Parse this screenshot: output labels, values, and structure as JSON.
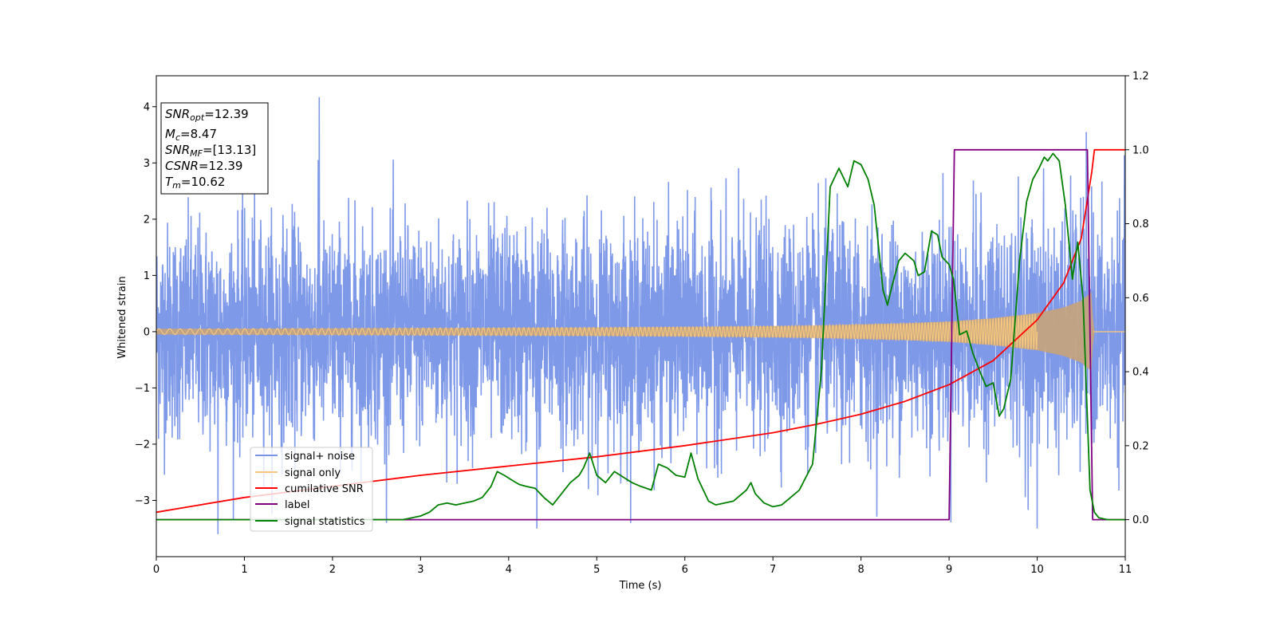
{
  "chart_data": {
    "type": "line",
    "xlabel": "Time (s)",
    "ylabel": "Whitened strain",
    "xlim": [
      0,
      11
    ],
    "ylim": [
      -4.0,
      4.55
    ],
    "y2lim": [
      -0.1,
      1.2
    ],
    "xticks": [
      "0",
      "1",
      "2",
      "3",
      "4",
      "5",
      "6",
      "7",
      "8",
      "9",
      "10",
      "11"
    ],
    "yticks": [
      "4",
      "3",
      "2",
      "1",
      "0",
      "−1",
      "−2",
      "−3"
    ],
    "yticks_values": [
      4,
      3,
      2,
      1,
      0,
      -1,
      -2,
      -3
    ],
    "y2ticks": [
      "1.2",
      "1.0",
      "0.8",
      "0.6",
      "0.4",
      "0.2",
      "0.0"
    ],
    "y2ticks_values": [
      1.2,
      1.0,
      0.8,
      0.6,
      0.4,
      0.2,
      0.0
    ],
    "legend_position": "lower-left",
    "info_box": {
      "snr_opt": {
        "base": "SNR",
        "sub": "opt",
        "value": "=12.39"
      },
      "mc": {
        "base": "M",
        "sub": "c",
        "value": "=8.47"
      },
      "snr_mf": {
        "base": "SNR",
        "sub": "MF",
        "value": "=[13.13]"
      },
      "csnr": {
        "base": "CSNR",
        "sub": "",
        "value": "=12.39"
      },
      "tm": {
        "base": "T",
        "sub": "m",
        "value": "=10.62"
      }
    },
    "series": [
      {
        "name": "signal+ noise",
        "color": "#7894e8",
        "axis": "left",
        "description_range": [
          -3.6,
          4.17
        ],
        "notable_peaks": [
          {
            "x": 1.85,
            "y": 4.17
          },
          {
            "x": 0.7,
            "y": -3.6
          },
          {
            "x": 4.32,
            "y": -3.5
          },
          {
            "x": 10.0,
            "y": -3.5
          }
        ]
      },
      {
        "name": "signal only",
        "color": "#f5c77e",
        "axis": "left",
        "envelope": {
          "x": [
            0,
            1,
            2,
            3,
            4,
            5,
            6,
            7,
            7.5,
            8,
            8.5,
            9,
            9.5,
            10,
            10.3,
            10.5,
            10.6,
            10.62,
            10.64,
            11
          ],
          "y": [
            0.05,
            0.055,
            0.06,
            0.065,
            0.07,
            0.075,
            0.085,
            0.1,
            0.11,
            0.13,
            0.15,
            0.18,
            0.24,
            0.33,
            0.43,
            0.55,
            0.68,
            0.72,
            0.0,
            0.0
          ]
        },
        "fill_color": "#c8a37a"
      },
      {
        "name": "cumilative SNR",
        "color": "#ff0000",
        "axis": "right",
        "x": [
          0,
          1,
          2,
          3,
          4,
          5,
          6,
          7,
          7.5,
          8,
          8.5,
          9,
          9.5,
          10,
          10.3,
          10.5,
          10.62,
          10.65,
          11
        ],
        "y": [
          0.02,
          0.06,
          0.09,
          0.12,
          0.145,
          0.17,
          0.2,
          0.235,
          0.258,
          0.285,
          0.32,
          0.365,
          0.43,
          0.54,
          0.64,
          0.76,
          0.94,
          1.0,
          1.0
        ]
      },
      {
        "name": "label",
        "color": "#800080",
        "axis": "right",
        "x": [
          0,
          9.0,
          9.06,
          10.57,
          10.63,
          11
        ],
        "y": [
          0.0,
          0.0,
          1.0,
          1.0,
          0.0,
          0.0
        ]
      },
      {
        "name": "signal statistics",
        "color": "#008000",
        "axis": "right",
        "x": [
          0,
          2.8,
          3.0,
          3.1,
          3.2,
          3.3,
          3.4,
          3.5,
          3.6,
          3.7,
          3.8,
          3.87,
          3.95,
          4.05,
          4.12,
          4.2,
          4.3,
          4.4,
          4.5,
          4.6,
          4.7,
          4.8,
          4.85,
          4.92,
          5.0,
          5.1,
          5.2,
          5.3,
          5.4,
          5.5,
          5.62,
          5.7,
          5.8,
          5.9,
          6.0,
          6.07,
          6.15,
          6.27,
          6.35,
          6.55,
          6.7,
          6.75,
          6.8,
          6.9,
          7.0,
          7.1,
          7.2,
          7.3,
          7.45,
          7.55,
          7.65,
          7.75,
          7.85,
          7.92,
          8.0,
          8.08,
          8.15,
          8.25,
          8.3,
          8.35,
          8.43,
          8.5,
          8.6,
          8.65,
          8.72,
          8.8,
          8.87,
          8.92,
          9.0,
          9.05,
          9.12,
          9.2,
          9.27,
          9.35,
          9.42,
          9.5,
          9.57,
          9.62,
          9.7,
          9.8,
          9.88,
          9.95,
          10.02,
          10.08,
          10.12,
          10.18,
          10.25,
          10.32,
          10.4,
          10.46,
          10.52,
          10.6,
          10.65,
          10.7,
          10.8,
          11.0
        ],
        "y": [
          0.0,
          0.0,
          0.01,
          0.02,
          0.04,
          0.045,
          0.04,
          0.045,
          0.05,
          0.06,
          0.09,
          0.13,
          0.12,
          0.105,
          0.095,
          0.09,
          0.085,
          0.06,
          0.04,
          0.07,
          0.1,
          0.12,
          0.14,
          0.18,
          0.12,
          0.1,
          0.13,
          0.115,
          0.1,
          0.09,
          0.08,
          0.15,
          0.14,
          0.12,
          0.115,
          0.18,
          0.11,
          0.05,
          0.04,
          0.05,
          0.08,
          0.1,
          0.07,
          0.045,
          0.035,
          0.04,
          0.06,
          0.08,
          0.15,
          0.4,
          0.9,
          0.95,
          0.9,
          0.97,
          0.96,
          0.92,
          0.85,
          0.62,
          0.58,
          0.63,
          0.7,
          0.72,
          0.7,
          0.66,
          0.67,
          0.78,
          0.77,
          0.71,
          0.69,
          0.65,
          0.5,
          0.51,
          0.45,
          0.4,
          0.36,
          0.37,
          0.28,
          0.3,
          0.38,
          0.7,
          0.86,
          0.92,
          0.95,
          0.98,
          0.97,
          0.99,
          0.97,
          0.85,
          0.65,
          0.75,
          0.6,
          0.08,
          0.02,
          0.005,
          0.0,
          0.0
        ]
      }
    ]
  }
}
